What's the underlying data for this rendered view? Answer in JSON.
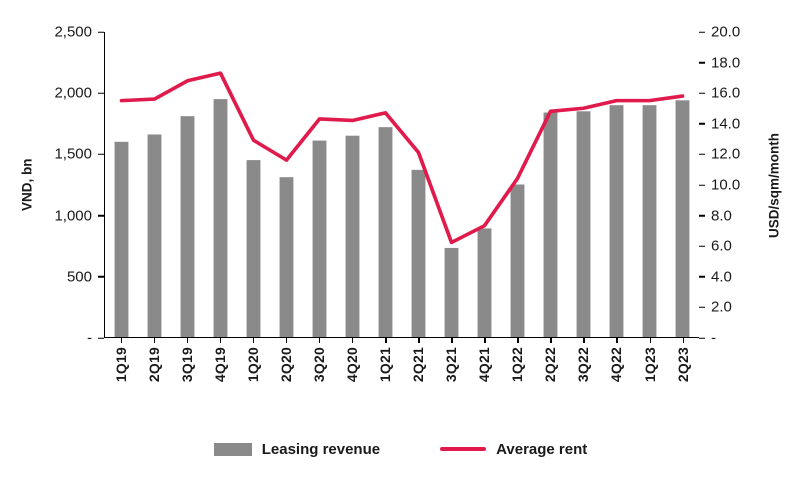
{
  "chart_data": {
    "type": "bar",
    "subtype": "combo-bar-line",
    "categories": [
      "1Q19",
      "2Q19",
      "3Q19",
      "4Q19",
      "1Q20",
      "2Q20",
      "3Q20",
      "4Q20",
      "1Q21",
      "2Q21",
      "3Q21",
      "4Q21",
      "1Q22",
      "2Q22",
      "3Q22",
      "4Q22",
      "1Q23",
      "2Q23"
    ],
    "series": [
      {
        "name": "Leasing revenue",
        "type": "bar",
        "axis": "left",
        "values": [
          1600,
          1660,
          1810,
          1950,
          1450,
          1310,
          1610,
          1650,
          1720,
          1370,
          730,
          890,
          1250,
          1840,
          1850,
          1900,
          1900,
          1940
        ]
      },
      {
        "name": "Average rent",
        "type": "line",
        "axis": "right",
        "values": [
          15.5,
          15.6,
          16.8,
          17.3,
          12.9,
          11.6,
          14.3,
          14.2,
          14.7,
          12.1,
          6.2,
          7.3,
          10.4,
          14.8,
          15.0,
          15.5,
          15.5,
          15.8
        ]
      }
    ],
    "left_axis": {
      "label": "VND, bn",
      "min": 0,
      "max": 2500,
      "ticks": [
        "2,500",
        "2,000",
        "1,500",
        "1,000",
        "500",
        "-"
      ]
    },
    "right_axis": {
      "label": "USD/sqm/month",
      "min": 0,
      "max": 20,
      "ticks": [
        "20.0",
        "18.0",
        "16.0",
        "14.0",
        "12.0",
        "10.0",
        "8.0",
        "6.0",
        "4.0",
        "2.0",
        "-"
      ]
    },
    "legend": [
      {
        "label": "Leasing revenue",
        "swatch": "bar"
      },
      {
        "label": "Average rent",
        "swatch": "line"
      }
    ],
    "grid": false,
    "legend_position": "bottom",
    "colors": {
      "bar": "#8a8a8a",
      "line": "#e11a4c"
    }
  }
}
